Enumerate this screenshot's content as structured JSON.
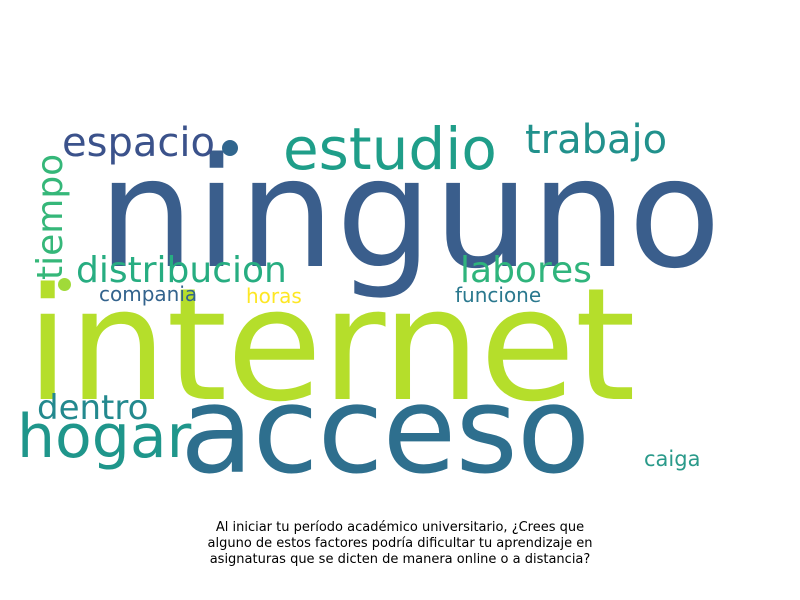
{
  "words": [
    {
      "id": "ninguno",
      "text": "ninguno",
      "color": "#3a5e8c"
    },
    {
      "id": "internet",
      "text": "internet",
      "color": "#b5de2b"
    },
    {
      "id": "acceso",
      "text": "acceso",
      "color": "#2e6f8e"
    },
    {
      "id": "estudio",
      "text": "estudio",
      "color": "#1f9e89"
    },
    {
      "id": "espacio",
      "text": "espacio",
      "color": "#3b528b"
    },
    {
      "id": "trabajo",
      "text": "trabajo",
      "color": "#21918c"
    },
    {
      "id": "tiempo",
      "text": "tiempo",
      "color": "#35b779"
    },
    {
      "id": "distribucion",
      "text": "distribucion",
      "color": "#27ad81"
    },
    {
      "id": "labores",
      "text": "labores",
      "color": "#2fb47c"
    },
    {
      "id": "hogar",
      "text": "hogar",
      "color": "#1f968b"
    },
    {
      "id": "dentro",
      "text": "dentro",
      "color": "#23898e"
    },
    {
      "id": "compania",
      "text": "compania",
      "color": "#33638d"
    },
    {
      "id": "horas",
      "text": "horas",
      "color": "#fde725"
    },
    {
      "id": "funcione",
      "text": "funcione",
      "color": "#2a788e"
    },
    {
      "id": "caiga",
      "text": "caiga",
      "color": "#2a9a8a"
    }
  ],
  "dots": [
    {
      "id": "dot-navy",
      "color": "#31668e"
    },
    {
      "id": "dot-lime",
      "color": "#a0da39"
    }
  ],
  "caption": {
    "line1": "Al iniciar tu período académico universitario, ¿Crees que",
    "line2": "alguno de estos factores podría dificultar tu aprendizaje en",
    "line3": "asignaturas que se dicten de manera online o a distancia?"
  }
}
